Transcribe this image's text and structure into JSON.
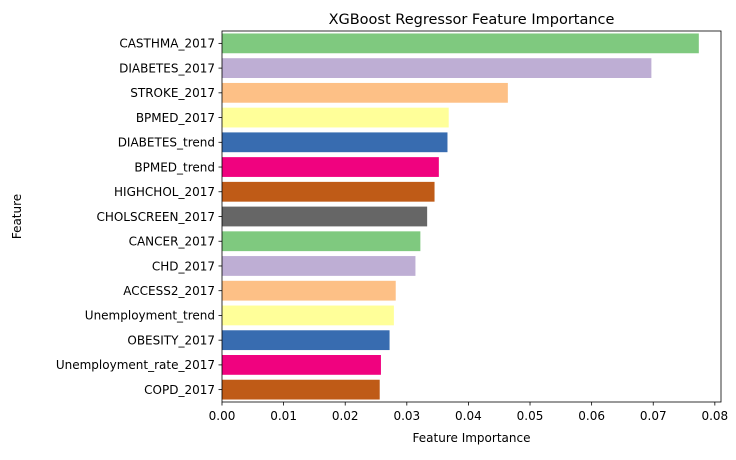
{
  "chart_data": {
    "type": "bar",
    "orientation": "horizontal",
    "title": "XGBoost Regressor Feature Importance",
    "xlabel": "Feature Importance",
    "ylabel": "Feature",
    "xlim": [
      0,
      0.081
    ],
    "xticks": [
      "0.00",
      "0.01",
      "0.02",
      "0.03",
      "0.04",
      "0.05",
      "0.06",
      "0.07",
      "0.08"
    ],
    "grid": false,
    "legend": "none",
    "categories": [
      "CASTHMA_2017",
      "DIABETES_2017",
      "STROKE_2017",
      "BPMED_2017",
      "DIABETES_trend",
      "BPMED_trend",
      "HIGHCHOL_2017",
      "CHOLSCREEN_2017",
      "CANCER_2017",
      "CHD_2017",
      "ACCESS2_2017",
      "Unemployment_trend",
      "OBESITY_2017",
      "Unemployment_rate_2017",
      "COPD_2017"
    ],
    "values": [
      0.0774,
      0.0697,
      0.0464,
      0.0368,
      0.0366,
      0.0352,
      0.0345,
      0.0333,
      0.0322,
      0.0314,
      0.0282,
      0.0279,
      0.0272,
      0.0258,
      0.0256
    ],
    "colors": [
      "#7fc97f",
      "#beaed4",
      "#fdc086",
      "#ffff99",
      "#386cb0",
      "#f0027f",
      "#bf5b17",
      "#666666",
      "#7fc97f",
      "#beaed4",
      "#fdc086",
      "#ffff99",
      "#386cb0",
      "#f0027f",
      "#bf5b17"
    ]
  }
}
